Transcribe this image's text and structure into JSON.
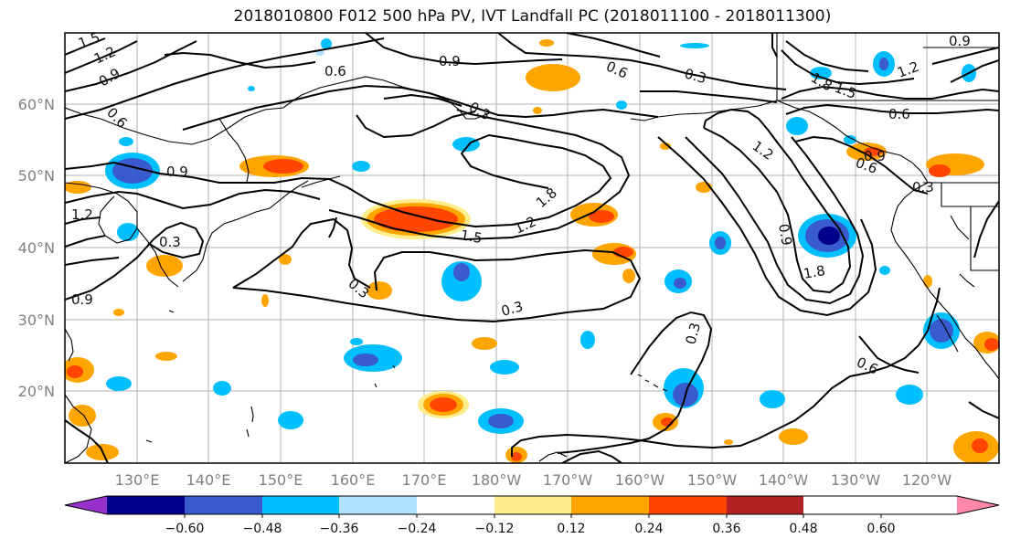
{
  "title": "2018010800 F012 500 hPa PV, IVT Landfall PC (2018011100 - 2018011300)",
  "lat_labels": [
    "60°N",
    "50°N",
    "40°N",
    "30°N",
    "20°N"
  ],
  "lon_labels": [
    "130°E",
    "140°E",
    "150°E",
    "160°E",
    "170°E",
    "180°W",
    "170°W",
    "160°W",
    "150°W",
    "140°W",
    "130°W",
    "120°W"
  ],
  "colorbar": {
    "ticks": [
      "−0.60",
      "−0.48",
      "−0.36",
      "−0.24",
      "−0.12",
      "0.12",
      "0.24",
      "0.36",
      "0.48",
      "0.60"
    ],
    "colors": [
      "#9932cc",
      "#00008b",
      "#3a5bcd",
      "#00bfff",
      "#b0e2ff",
      "#ffffff",
      "#ffec8b",
      "#ffa500",
      "#ff4500",
      "#b22222",
      "#ff88aa"
    ]
  },
  "contour_labels": [
    {
      "text": "1.5"
    },
    {
      "text": "1.2"
    },
    {
      "text": "0.9"
    },
    {
      "text": "0.6"
    },
    {
      "text": "0.6"
    },
    {
      "text": "0.9"
    },
    {
      "text": "0.6"
    },
    {
      "text": "0.3"
    },
    {
      "text": "0.3"
    },
    {
      "text": "0.9"
    },
    {
      "text": "1.2"
    },
    {
      "text": "0.3"
    },
    {
      "text": "1.5"
    },
    {
      "text": "1.2"
    },
    {
      "text": "1.8"
    },
    {
      "text": "0.3"
    },
    {
      "text": "0.3"
    },
    {
      "text": "1.2"
    },
    {
      "text": "0.6"
    },
    {
      "text": "0.9"
    },
    {
      "text": "1.8"
    },
    {
      "text": "0.3"
    },
    {
      "text": "0.6"
    },
    {
      "text": "1.8"
    },
    {
      "text": "1.5"
    },
    {
      "text": "1.2"
    },
    {
      "text": "0.9"
    },
    {
      "text": "0.6"
    },
    {
      "text": "0.9"
    },
    {
      "text": "0.3"
    },
    {
      "text": "0.9"
    }
  ]
}
